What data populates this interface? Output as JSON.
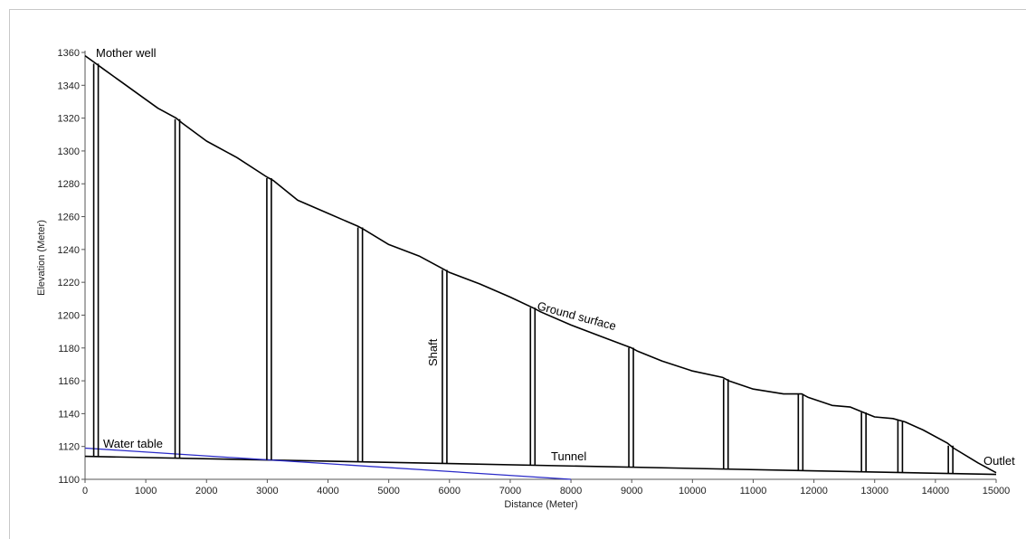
{
  "chart_data": {
    "type": "line",
    "title": "",
    "xlabel": "Distance (Meter)",
    "ylabel": "Elevation (Meter)",
    "xlim": [
      0,
      15000
    ],
    "ylim": [
      1100,
      1360
    ],
    "x_ticks": [
      0,
      1000,
      2000,
      3000,
      4000,
      5000,
      6000,
      7000,
      8000,
      9000,
      10000,
      11000,
      12000,
      13000,
      14000,
      15000
    ],
    "y_ticks": [
      1100,
      1120,
      1140,
      1160,
      1180,
      1200,
      1220,
      1240,
      1260,
      1280,
      1300,
      1320,
      1340,
      1360
    ],
    "grid": false,
    "series": [
      {
        "name": "Ground surface",
        "color": "#000000",
        "points": [
          [
            0,
            1358
          ],
          [
            150,
            1354
          ],
          [
            300,
            1350
          ],
          [
            600,
            1342
          ],
          [
            900,
            1334
          ],
          [
            1200,
            1326
          ],
          [
            1500,
            1320
          ],
          [
            1600,
            1317
          ],
          [
            2000,
            1306
          ],
          [
            2500,
            1296
          ],
          [
            3000,
            1284
          ],
          [
            3100,
            1282
          ],
          [
            3500,
            1270
          ],
          [
            4000,
            1262
          ],
          [
            4500,
            1254
          ],
          [
            4600,
            1252
          ],
          [
            5000,
            1243
          ],
          [
            5500,
            1236
          ],
          [
            5900,
            1228
          ],
          [
            6000,
            1226
          ],
          [
            6500,
            1219
          ],
          [
            7000,
            1211
          ],
          [
            7400,
            1204
          ],
          [
            7500,
            1202
          ],
          [
            8000,
            1194
          ],
          [
            8500,
            1187
          ],
          [
            9000,
            1180
          ],
          [
            9100,
            1178
          ],
          [
            9500,
            1172
          ],
          [
            10000,
            1166
          ],
          [
            10500,
            1162
          ],
          [
            10600,
            1160
          ],
          [
            11000,
            1155
          ],
          [
            11500,
            1152
          ],
          [
            11800,
            1152
          ],
          [
            11900,
            1150
          ],
          [
            12300,
            1145
          ],
          [
            12600,
            1144
          ],
          [
            12800,
            1141
          ],
          [
            13000,
            1138
          ],
          [
            13300,
            1137
          ],
          [
            13500,
            1135
          ],
          [
            13800,
            1130
          ],
          [
            14200,
            1122
          ],
          [
            14300,
            1119
          ],
          [
            14700,
            1110
          ],
          [
            15000,
            1104
          ]
        ]
      },
      {
        "name": "Tunnel",
        "color": "#000000",
        "points": [
          [
            0,
            1114
          ],
          [
            15000,
            1103
          ]
        ]
      },
      {
        "name": "Water table",
        "color": "#2a2ac8",
        "points": [
          [
            0,
            1119
          ],
          [
            8000,
            1100
          ]
        ]
      }
    ],
    "shafts_x": [
      180,
      1520,
      3030,
      4530,
      5920,
      7370,
      8990,
      10550,
      11780,
      12820,
      13420,
      14250
    ],
    "annotations": {
      "mother_well": "Mother well",
      "water_table": "Water table",
      "tunnel": "Tunnel",
      "shaft": "Shaft",
      "ground_surface": "Ground surface",
      "outlet": "Outlet"
    }
  }
}
